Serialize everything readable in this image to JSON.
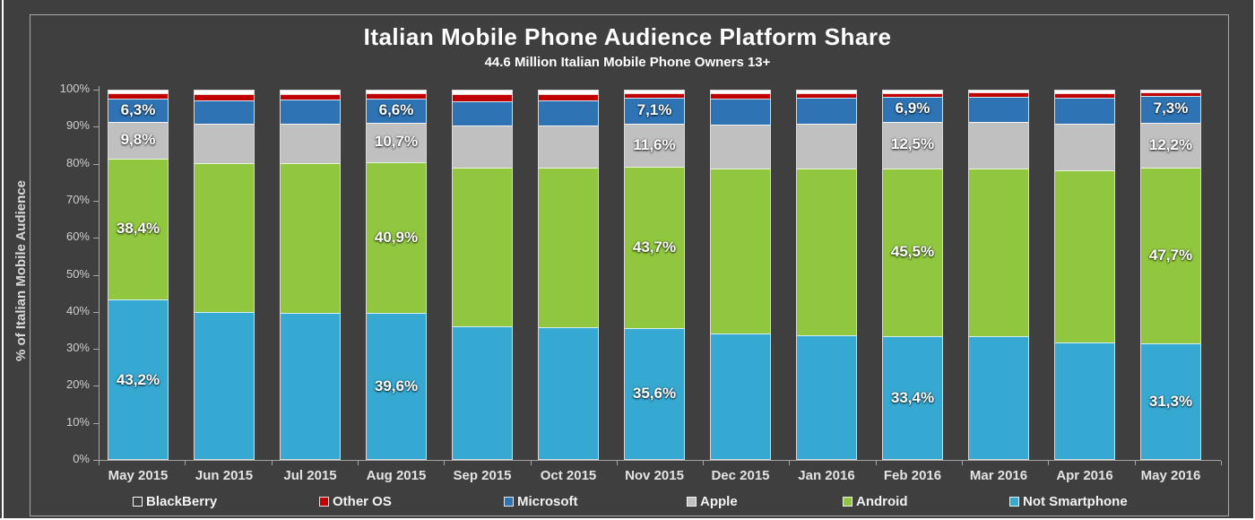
{
  "chart_data": {
    "type": "bar",
    "variant": "stacked-100-percent",
    "title": "Italian Mobile Phone Audience Platform Share",
    "subtitle": "44.6 Million Italian Mobile Phone Owners 13+",
    "ylabel": "% of Italian Mobile Audience",
    "ylim": [
      0,
      100
    ],
    "ytick_step": 10,
    "ytick_labels": [
      "0%",
      "10%",
      "20%",
      "30%",
      "40%",
      "50%",
      "60%",
      "70%",
      "80%",
      "90%",
      "100%"
    ],
    "grid": "off",
    "legend_position": "bottom",
    "categories": [
      "May 2015",
      "Jun 2015",
      "Jul 2015",
      "Aug 2015",
      "Sep 2015",
      "Oct 2015",
      "Nov 2015",
      "Dec 2015",
      "Jan 2016",
      "Feb 2016",
      "Mar 2016",
      "Apr 2016",
      "May 2016"
    ],
    "series": [
      {
        "name": "Not Smartphone",
        "color": "#36a9d2",
        "values": [
          43.2,
          39.9,
          39.7,
          39.6,
          36.1,
          35.8,
          35.6,
          34.0,
          33.7,
          33.4,
          33.3,
          31.7,
          31.3
        ],
        "labels": [
          "43,2%",
          null,
          null,
          "39,6%",
          null,
          null,
          "35,6%",
          null,
          null,
          "33,4%",
          null,
          null,
          "31,3%"
        ]
      },
      {
        "name": "Android",
        "color": "#90c73e",
        "values": [
          38.4,
          40.3,
          40.7,
          40.9,
          43.1,
          43.2,
          43.7,
          44.9,
          45.2,
          45.5,
          45.6,
          46.7,
          47.7
        ],
        "labels": [
          "38,4%",
          null,
          null,
          "40,9%",
          null,
          null,
          "43,7%",
          null,
          null,
          "45,5%",
          null,
          null,
          "47,7%"
        ]
      },
      {
        "name": "Apple",
        "color": "#c0c0c0",
        "values": [
          9.8,
          10.7,
          10.6,
          10.7,
          11.2,
          11.4,
          11.6,
          11.9,
          12.1,
          12.5,
          12.5,
          12.6,
          12.2
        ],
        "labels": [
          "9,8%",
          null,
          null,
          "10,7%",
          null,
          null,
          "11,6%",
          null,
          null,
          "12,5%",
          null,
          null,
          "12,2%"
        ]
      },
      {
        "name": "Microsoft",
        "color": "#2e74b5",
        "values": [
          6.3,
          6.5,
          6.5,
          6.6,
          6.8,
          7.0,
          7.1,
          7.0,
          7.0,
          6.9,
          7.0,
          7.1,
          7.3
        ],
        "labels": [
          "6,3%",
          null,
          null,
          "6,6%",
          null,
          null,
          "7,1%",
          null,
          null,
          "6,9%",
          null,
          null,
          "7,3%"
        ]
      },
      {
        "name": "Other OS",
        "color": "#c00000",
        "values": [
          1.5,
          1.7,
          1.6,
          1.4,
          1.9,
          1.7,
          1.3,
          1.4,
          1.3,
          1.1,
          1.0,
          1.2,
          0.9
        ],
        "labels": [
          null,
          null,
          null,
          null,
          null,
          null,
          null,
          null,
          null,
          null,
          null,
          null,
          null
        ]
      },
      {
        "name": "BlackBerry",
        "color": "#ffffff",
        "values": [
          0.8,
          0.9,
          0.9,
          0.8,
          0.9,
          0.9,
          0.7,
          0.8,
          0.7,
          0.6,
          0.6,
          0.7,
          0.6
        ],
        "labels": [
          null,
          null,
          null,
          null,
          null,
          null,
          null,
          null,
          null,
          null,
          null,
          null,
          null
        ]
      }
    ],
    "legend": [
      {
        "label": "BlackBerry",
        "color": "#ffffff",
        "swatch": "outline"
      },
      {
        "label": "Other OS",
        "color": "#c00000",
        "swatch": "filled"
      },
      {
        "label": "Microsoft",
        "color": "#2e74b5",
        "swatch": "filled"
      },
      {
        "label": "Apple",
        "color": "#c0c0c0",
        "swatch": "filled"
      },
      {
        "label": "Android",
        "color": "#90c73e",
        "swatch": "filled"
      },
      {
        "label": "Not Smartphone",
        "color": "#36a9d2",
        "swatch": "filled"
      }
    ]
  }
}
